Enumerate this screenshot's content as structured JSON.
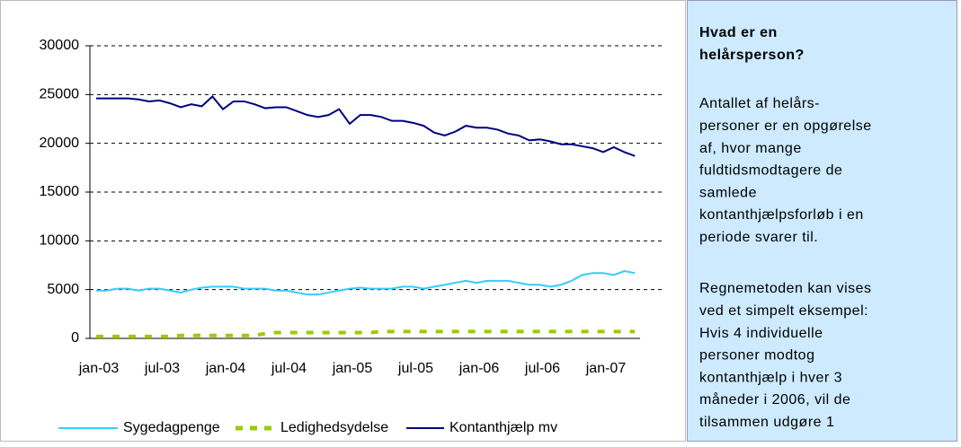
{
  "chart_data": {
    "type": "line",
    "categories": [
      "jan-03",
      null,
      null,
      null,
      null,
      null,
      "jul-03",
      null,
      null,
      null,
      null,
      null,
      "jan-04",
      null,
      null,
      null,
      null,
      null,
      "jul-04",
      null,
      null,
      null,
      null,
      null,
      "jan-05",
      null,
      null,
      null,
      null,
      null,
      "jul-05",
      null,
      null,
      null,
      null,
      null,
      "jan-06",
      null,
      null,
      null,
      null,
      null,
      "jul-06",
      null,
      null,
      null,
      null,
      null,
      "jan-07",
      null,
      null,
      null
    ],
    "ylim": [
      0,
      30000
    ],
    "yticks": [
      0,
      5000,
      10000,
      15000,
      20000,
      25000,
      30000
    ],
    "grid": true,
    "legend": "bottom",
    "series": [
      {
        "name": "Sygedagpenge",
        "color": "#33ccff",
        "values": [
          4900,
          4900,
          5100,
          5100,
          4900,
          5100,
          5100,
          4900,
          4700,
          5000,
          5200,
          5300,
          5300,
          5300,
          5100,
          5100,
          5100,
          4900,
          4900,
          4700,
          4500,
          4500,
          4700,
          4900,
          5100,
          5200,
          5100,
          5100,
          5100,
          5300,
          5300,
          5100,
          5300,
          5500,
          5700,
          5900,
          5700,
          5900,
          5900,
          5900,
          5700,
          5500,
          5500,
          5300,
          5500,
          5900,
          6500,
          6700,
          6700,
          6500,
          6900,
          6700
        ]
      },
      {
        "name": "Ledighedsydelse",
        "color": "#99cc00",
        "dashed": true,
        "values": [
          200,
          200,
          200,
          200,
          200,
          200,
          200,
          200,
          300,
          300,
          300,
          300,
          300,
          300,
          300,
          300,
          500,
          600,
          600,
          600,
          600,
          600,
          600,
          600,
          600,
          600,
          600,
          700,
          700,
          700,
          700,
          700,
          700,
          700,
          700,
          700,
          700,
          700,
          700,
          700,
          700,
          700,
          700,
          700,
          700,
          700,
          700,
          700,
          700,
          700,
          700,
          700
        ]
      },
      {
        "name": "Kontanthjælp mv",
        "color": "#000080",
        "values": [
          24600,
          24600,
          24600,
          24600,
          24500,
          24300,
          24400,
          24100,
          23700,
          24000,
          23800,
          24800,
          23500,
          24300,
          24300,
          24000,
          23600,
          23700,
          23700,
          23300,
          22900,
          22700,
          22900,
          23500,
          22000,
          22900,
          22900,
          22700,
          22300,
          22300,
          22100,
          21800,
          21100,
          20800,
          21200,
          21800,
          21600,
          21600,
          21400,
          21000,
          20800,
          20300,
          20400,
          20200,
          19900,
          19900,
          19700,
          19500,
          19100,
          19600,
          19100,
          18700
        ]
      }
    ]
  },
  "sidebar": {
    "title": [
      "Hvad er en",
      "helårsperson?"
    ],
    "paragraphs": [
      [
        "Antallet af helårs-",
        "personer er en opgørelse",
        "af, hvor mange",
        "fuldtidsmodtagere de",
        "samlede",
        "kontanthjælpsforløb i en",
        "periode svarer til."
      ],
      [
        "Regnemetoden kan vises",
        "ved et simpelt eksempel:",
        "Hvis 4 individuelle",
        "personer modtog",
        "kontanthjælp i hver 3",
        "måneder i 2006, vil de",
        "tilsammen udgøre 1"
      ]
    ]
  }
}
